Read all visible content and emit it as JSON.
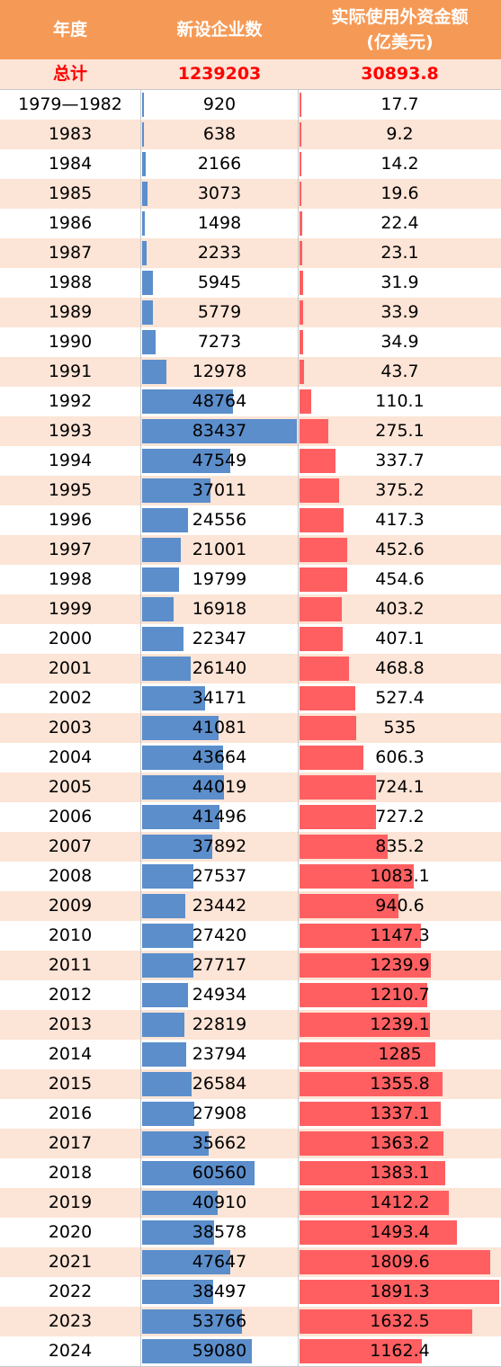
{
  "header": {
    "col_year": "年度",
    "col_count": "新设企业数",
    "col_amount_line1": "实际使用外资金额",
    "col_amount_line2": "(亿美元)"
  },
  "total": {
    "label": "总计",
    "count": "1239203",
    "amount": "30893.8"
  },
  "colors": {
    "header_bg": "#F59A56",
    "stripe_bg": "#FCE4D6",
    "count_bar": "#5B8ECB",
    "amount_bar": "#FF5F61",
    "total_text": "#FF0000"
  },
  "rows": [
    {
      "year": "1979—1982",
      "count": "920",
      "amount": "17.7"
    },
    {
      "year": "1983",
      "count": "638",
      "amount": "9.2"
    },
    {
      "year": "1984",
      "count": "2166",
      "amount": "14.2"
    },
    {
      "year": "1985",
      "count": "3073",
      "amount": "19.6"
    },
    {
      "year": "1986",
      "count": "1498",
      "amount": "22.4"
    },
    {
      "year": "1987",
      "count": "2233",
      "amount": "23.1"
    },
    {
      "year": "1988",
      "count": "5945",
      "amount": "31.9"
    },
    {
      "year": "1989",
      "count": "5779",
      "amount": "33.9"
    },
    {
      "year": "1990",
      "count": "7273",
      "amount": "34.9"
    },
    {
      "year": "1991",
      "count": "12978",
      "amount": "43.7"
    },
    {
      "year": "1992",
      "count": "48764",
      "amount": "110.1"
    },
    {
      "year": "1993",
      "count": "83437",
      "amount": "275.1"
    },
    {
      "year": "1994",
      "count": "47549",
      "amount": "337.7"
    },
    {
      "year": "1995",
      "count": "37011",
      "amount": "375.2"
    },
    {
      "year": "1996",
      "count": "24556",
      "amount": "417.3"
    },
    {
      "year": "1997",
      "count": "21001",
      "amount": "452.6"
    },
    {
      "year": "1998",
      "count": "19799",
      "amount": "454.6"
    },
    {
      "year": "1999",
      "count": "16918",
      "amount": "403.2"
    },
    {
      "year": "2000",
      "count": "22347",
      "amount": "407.1"
    },
    {
      "year": "2001",
      "count": "26140",
      "amount": "468.8"
    },
    {
      "year": "2002",
      "count": "34171",
      "amount": "527.4"
    },
    {
      "year": "2003",
      "count": "41081",
      "amount": "535"
    },
    {
      "year": "2004",
      "count": "43664",
      "amount": "606.3"
    },
    {
      "year": "2005",
      "count": "44019",
      "amount": "724.1"
    },
    {
      "year": "2006",
      "count": "41496",
      "amount": "727.2"
    },
    {
      "year": "2007",
      "count": "37892",
      "amount": "835.2"
    },
    {
      "year": "2008",
      "count": "27537",
      "amount": "1083.1"
    },
    {
      "year": "2009",
      "count": "23442",
      "amount": "940.6"
    },
    {
      "year": "2010",
      "count": "27420",
      "amount": "1147.3"
    },
    {
      "year": "2011",
      "count": "27717",
      "amount": "1239.9"
    },
    {
      "year": "2012",
      "count": "24934",
      "amount": "1210.7"
    },
    {
      "year": "2013",
      "count": "22819",
      "amount": "1239.1"
    },
    {
      "year": "2014",
      "count": "23794",
      "amount": "1285"
    },
    {
      "year": "2015",
      "count": "26584",
      "amount": "1355.8"
    },
    {
      "year": "2016",
      "count": "27908",
      "amount": "1337.1"
    },
    {
      "year": "2017",
      "count": "35662",
      "amount": "1363.2"
    },
    {
      "year": "2018",
      "count": "60560",
      "amount": "1383.1"
    },
    {
      "year": "2019",
      "count": "40910",
      "amount": "1412.2"
    },
    {
      "year": "2020",
      "count": "38578",
      "amount": "1493.4"
    },
    {
      "year": "2021",
      "count": "47647",
      "amount": "1809.6"
    },
    {
      "year": "2022",
      "count": "38497",
      "amount": "1891.3"
    },
    {
      "year": "2023",
      "count": "53766",
      "amount": "1632.5"
    },
    {
      "year": "2024",
      "count": "59080",
      "amount": "1162.4"
    }
  ]
}
